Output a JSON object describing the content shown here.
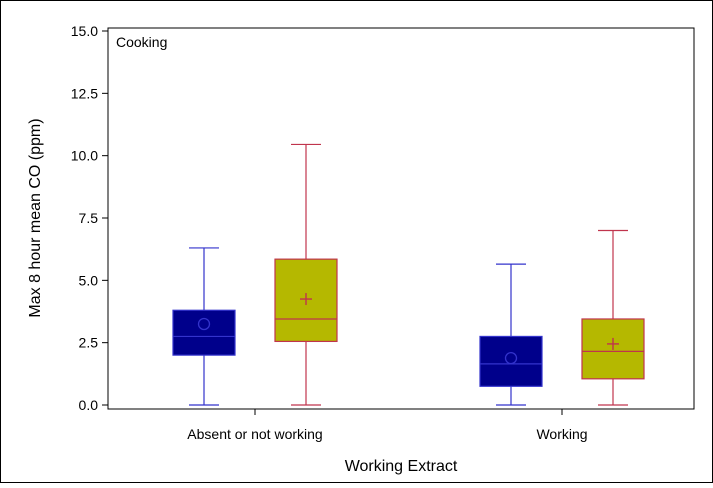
{
  "chart_data": {
    "type": "box",
    "panel_label": "Cooking",
    "xlabel": "Working Extract",
    "ylabel": "Max 8 hour mean CO (ppm)",
    "ylim": [
      0,
      15
    ],
    "yticks": [
      "0.0",
      "2.5",
      "5.0",
      "7.5",
      "10.0",
      "12.5",
      "15.0"
    ],
    "categories": [
      "Absent or not working",
      "Working"
    ],
    "grid": false,
    "series": [
      {
        "color": "#00008b",
        "line_color": "#3333cc",
        "mean_marker": "circle",
        "boxes": [
          {
            "min": 0.0,
            "q1": 2.0,
            "median": 2.75,
            "q3": 3.8,
            "max": 6.3,
            "mean": 3.25
          },
          {
            "min": 0.0,
            "q1": 0.75,
            "median": 1.65,
            "q3": 2.75,
            "max": 5.65,
            "mean": 1.88
          }
        ]
      },
      {
        "color": "#b5b800",
        "line_color": "#c0344d",
        "mean_marker": "plus",
        "boxes": [
          {
            "min": 0.0,
            "q1": 2.55,
            "median": 3.45,
            "q3": 5.85,
            "max": 10.45,
            "mean": 4.25
          },
          {
            "min": 0.0,
            "q1": 1.05,
            "median": 2.15,
            "q3": 3.45,
            "max": 7.0,
            "mean": 2.45
          }
        ]
      }
    ]
  }
}
